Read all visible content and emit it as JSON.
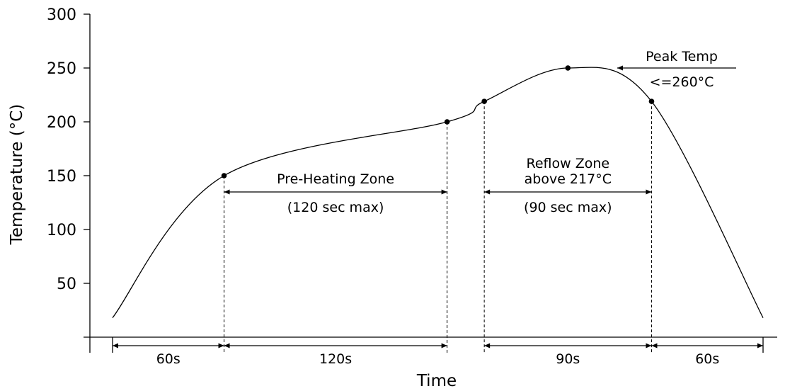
{
  "chart_data": {
    "type": "line",
    "title": "",
    "xlabel": "Time",
    "ylabel": "Temperature (°C)",
    "ylim": [
      0,
      300
    ],
    "yticks": [
      50,
      100,
      150,
      200,
      250,
      300
    ],
    "grid": false,
    "unit": "s",
    "key_points": [
      {
        "t": 0,
        "temp": 18
      },
      {
        "t": 60,
        "temp": 150
      },
      {
        "t": 180,
        "temp": 200
      },
      {
        "t": 200,
        "temp": 219
      },
      {
        "t": 245,
        "temp": 250
      },
      {
        "t": 290,
        "temp": 219
      },
      {
        "t": 350,
        "temp": 18
      }
    ],
    "markers": [
      {
        "t": 60,
        "temp": 150
      },
      {
        "t": 180,
        "temp": 200
      },
      {
        "t": 200,
        "temp": 219
      },
      {
        "t": 245,
        "temp": 250
      },
      {
        "t": 290,
        "temp": 219
      }
    ],
    "durations": [
      {
        "label": "60s",
        "start": 0,
        "end": 60
      },
      {
        "label": "120s",
        "start": 60,
        "end": 180
      },
      {
        "label": "90s",
        "start": 200,
        "end": 290
      },
      {
        "label": "60s",
        "start": 290,
        "end": 350
      }
    ],
    "zones": [
      {
        "lines": [
          "Pre-Heating Zone",
          "(120 sec max)"
        ],
        "start": 60,
        "end": 180
      },
      {
        "lines": [
          "Reflow Zone",
          "above 217°C",
          "(90 sec max)"
        ],
        "start": 200,
        "end": 290
      }
    ],
    "peak_annotation": {
      "lines": [
        "Peak Temp",
        "<=260°C"
      ],
      "t": 245,
      "temp": 250
    }
  }
}
